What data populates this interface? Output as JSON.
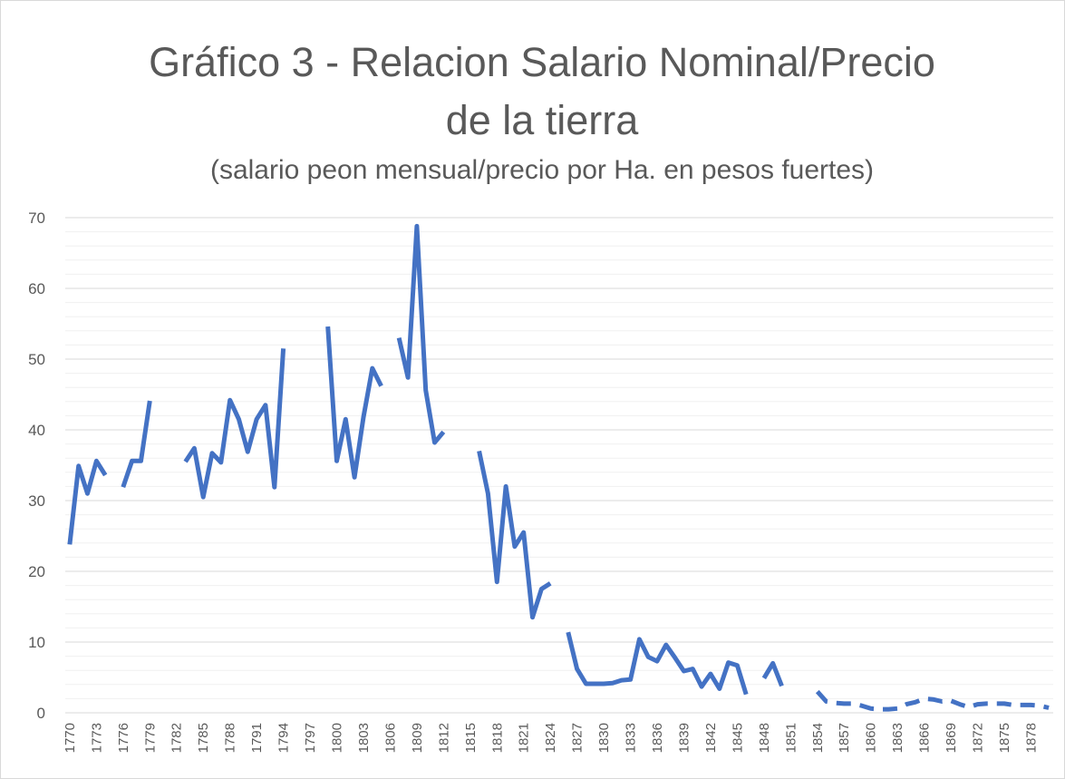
{
  "chart_data": {
    "type": "line",
    "title": [
      "Gráfico 3 - Relacion Salario Nominal/Precio",
      "de la tierra"
    ],
    "subtitle": "(salario peon mensual/precio por Ha. en pesos fuertes)",
    "categories": [
      "1770",
      null,
      null,
      "1773",
      null,
      null,
      "1776",
      null,
      null,
      "1779",
      null,
      null,
      "1782",
      null,
      null,
      "1785",
      null,
      null,
      "1788",
      null,
      null,
      "1791",
      null,
      null,
      "1794",
      null,
      null,
      "1797",
      null,
      null,
      "1800",
      null,
      null,
      "1803",
      null,
      null,
      "1806",
      null,
      null,
      "1809",
      null,
      null,
      "1812",
      null,
      null,
      "1815",
      null,
      null,
      "1818",
      null,
      null,
      "1821",
      null,
      null,
      "1824",
      null,
      null,
      "1827",
      null,
      null,
      "1830",
      null,
      null,
      "1833",
      null,
      null,
      "1836",
      null,
      null,
      "1839",
      null,
      null,
      "1842",
      null,
      null,
      "1845",
      null,
      null,
      "1848",
      null,
      null,
      "1851",
      null,
      null,
      "1854",
      null,
      null,
      "1857",
      null,
      null,
      "1860",
      null,
      null,
      "1863",
      null,
      null,
      "1866",
      null,
      null,
      "1869",
      null,
      null,
      "1872",
      null,
      null,
      "1875",
      null,
      null,
      "1878",
      null,
      null
    ],
    "series": [
      {
        "color": "#4472c4",
        "values": [
          23.8,
          34.9,
          31,
          35.6,
          33.6,
          null,
          31.9,
          35.6,
          35.6,
          44.1,
          null,
          null,
          null,
          35.5,
          37.4,
          30.5,
          36.7,
          35.4,
          44.2,
          41.5,
          36.9,
          41.5,
          43.5,
          31.9,
          51.5,
          null,
          null,
          null,
          null,
          54.6,
          35.6,
          41.5,
          33.3,
          41.8,
          48.7,
          46.2,
          null,
          53,
          47.4,
          68.8,
          45.6,
          38.2,
          39.7,
          null,
          null,
          null,
          37,
          31,
          18.5,
          32,
          23.5,
          25.5,
          13.5,
          17.5,
          18.3,
          null,
          11.4,
          6.2,
          4.1,
          4.1,
          4.1,
          4.2,
          4.6,
          4.7,
          10.4,
          7.9,
          7.3,
          9.6,
          7.8,
          5.9,
          6.2,
          3.7,
          5.5,
          3.4,
          7.1,
          6.7,
          2.6,
          null,
          4.9,
          7,
          3.8,
          null,
          null,
          null,
          null,
          null,
          null,
          null,
          null,
          null,
          null,
          null,
          null,
          null,
          null,
          null,
          null,
          null,
          null,
          null,
          null,
          null,
          null,
          null,
          null,
          null,
          null,
          null,
          null,
          null,
          null
        ]
      },
      {
        "color": "#4472c4",
        "dash": "16 10",
        "values": [
          null,
          null,
          null,
          null,
          null,
          null,
          null,
          null,
          null,
          null,
          null,
          null,
          null,
          null,
          null,
          null,
          null,
          null,
          null,
          null,
          null,
          null,
          null,
          null,
          null,
          null,
          null,
          null,
          null,
          null,
          null,
          null,
          null,
          null,
          null,
          null,
          null,
          null,
          null,
          null,
          null,
          null,
          null,
          null,
          null,
          null,
          null,
          null,
          null,
          null,
          null,
          null,
          null,
          null,
          null,
          null,
          null,
          null,
          null,
          null,
          null,
          null,
          null,
          null,
          null,
          null,
          null,
          null,
          null,
          null,
          null,
          null,
          null,
          null,
          null,
          null,
          null,
          null,
          null,
          null,
          null,
          null,
          null,
          null,
          3,
          1.6,
          1.4,
          1.3,
          1.3,
          1.0,
          0.6,
          0.5,
          0.5,
          0.6,
          1.2,
          1.5,
          2.0,
          1.9,
          1.6,
          1.7,
          1.2,
          0.8,
          1.2,
          1.3,
          1.3,
          1.3,
          1.1,
          1.1,
          1.1,
          1.0,
          0.7
        ]
      }
    ],
    "ylim": [
      0,
      70
    ],
    "yticks": [
      0,
      10,
      20,
      30,
      40,
      50,
      60,
      70
    ],
    "minor_yticks": [
      2,
      4,
      6,
      8,
      12,
      14,
      16,
      18,
      22,
      24,
      26,
      28,
      32,
      34,
      36,
      38,
      42,
      44,
      46,
      48,
      52,
      54,
      56,
      58,
      62,
      64,
      66,
      68
    ],
    "grid": true
  }
}
